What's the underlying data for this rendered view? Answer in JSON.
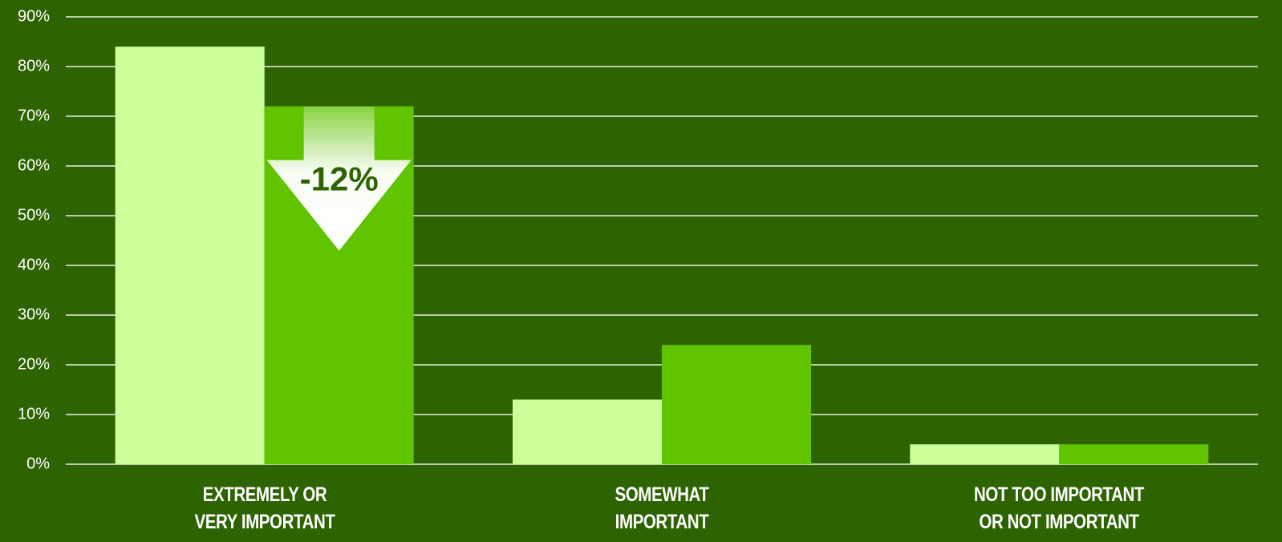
{
  "chart_data": {
    "type": "bar",
    "categories": [
      "EXTREMELY OR\nVERY IMPORTANT",
      "SOMEWHAT\nIMPORTANT",
      "NOT TOO IMPORTANT\nOR NOT IMPORTANT"
    ],
    "series": [
      {
        "color": "#ccff99",
        "values": [
          84,
          13,
          4
        ]
      },
      {
        "color": "#60c400",
        "values": [
          72,
          24,
          4
        ]
      }
    ],
    "ylim": [
      0,
      90
    ],
    "yticks": [
      {
        "value": 0,
        "label": "0%"
      },
      {
        "value": 10,
        "label": "10%"
      },
      {
        "value": 20,
        "label": "20%"
      },
      {
        "value": 30,
        "label": "30%"
      },
      {
        "value": 40,
        "label": "40%"
      },
      {
        "value": 50,
        "label": "50%"
      },
      {
        "value": 60,
        "label": "60%"
      },
      {
        "value": 70,
        "label": "70%"
      },
      {
        "value": 80,
        "label": "80%"
      },
      {
        "value": 90,
        "label": "90%"
      }
    ],
    "grid": true,
    "annotation": "-12%"
  }
}
